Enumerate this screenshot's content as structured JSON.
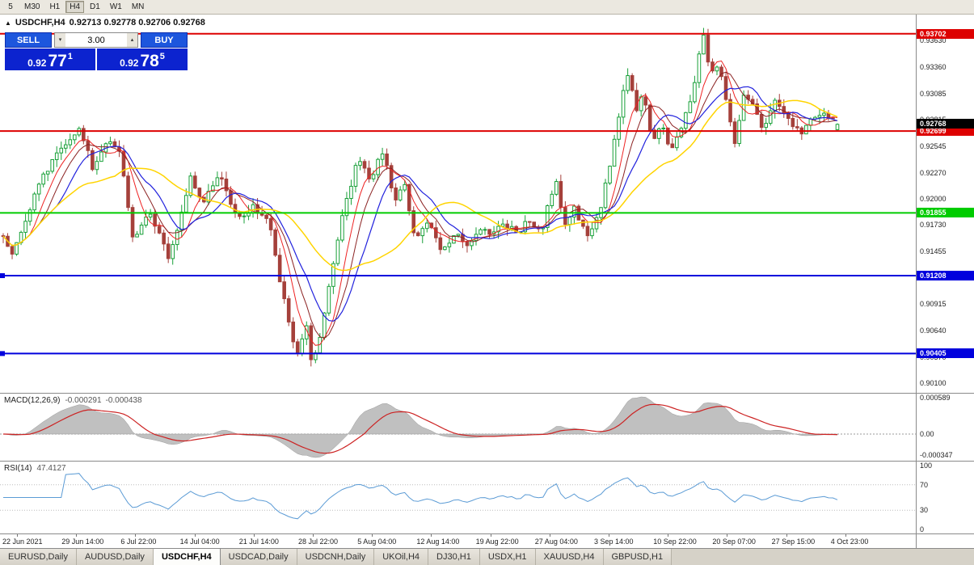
{
  "toolbar": {
    "timeframes": [
      "5",
      "M30",
      "H1",
      "H4",
      "D1",
      "W1",
      "MN"
    ],
    "active": "H4"
  },
  "chart": {
    "title_symbol": "USDCHF,H4",
    "title_ohlc": "0.92713 0.92778 0.92706 0.92768"
  },
  "icons": {
    "price_up_arrow": "▲",
    "spinner_up": "▴",
    "spinner_down": "▾"
  },
  "trade_widget": {
    "sell_label": "SELL",
    "buy_label": "BUY",
    "lot": "3.00",
    "sell_price": {
      "big": "0.92",
      "pips": "77",
      "pip_sup": "1"
    },
    "buy_price": {
      "big": "0.92",
      "pips": "78",
      "pip_sup": "5"
    }
  },
  "colors": {
    "up_candle": "#18a038",
    "down_candle": "#a5403b",
    "macd_fill": "#c0c0c0",
    "macd_signal": "#cc2222",
    "rsi_line": "#5b9bd5",
    "line_red": "#dd0000",
    "line_green": "#00cc00",
    "line_blue": "#0000dd",
    "widget_button_blue": "#1d56dd",
    "widget_price_blue": "#0c23cf"
  },
  "tabs": {
    "items": [
      "EURUSD,Daily",
      "AUDUSD,Daily",
      "USDCHF,H4",
      "USDCAD,Daily",
      "USDCNH,Daily",
      "UKOil,H4",
      "DJ30,H1",
      "USDX,H1",
      "XAUUSD,H4",
      "GBPUSD,H1"
    ],
    "active": "USDCHF,H4"
  },
  "chart_data": {
    "type": "candlestick",
    "symbol": "USDCHF",
    "timeframe": "H4",
    "visible_price_range": [
      0.9,
      0.939
    ],
    "candle_count": 188,
    "last_candle": [
      0.92713,
      0.92778,
      0.92706,
      0.92768
    ],
    "price_axis_labels": [
      "0.93630",
      "0.93360",
      "0.93085",
      "0.92815",
      "0.92545",
      "0.92270",
      "0.92000",
      "0.91730",
      "0.91455",
      "0.91185",
      "0.90915",
      "0.90640",
      "0.90370",
      "0.90100"
    ],
    "current_price": {
      "value": 0.92768,
      "label": "0.92768",
      "tag_bg": "#000000"
    },
    "horizontal_lines": [
      {
        "price": 0.93702,
        "label": "0.93702",
        "color": "#dd0000",
        "left_handle": false
      },
      {
        "price": 0.92699,
        "label": "0.92699",
        "color": "#dd0000",
        "left_handle": false
      },
      {
        "price": 0.91855,
        "label": "0.91855",
        "color": "#00cc00",
        "left_handle": false
      },
      {
        "price": 0.91208,
        "label": "0.91208",
        "color": "#0000dd",
        "left_handle": true
      },
      {
        "price": 0.90405,
        "label": "0.90405",
        "color": "#0000dd",
        "left_handle": true
      }
    ],
    "moving_averages": [
      {
        "name": "ma-fast-red",
        "period": 6,
        "color": "#ee2222",
        "width": 1
      },
      {
        "name": "ma-darkred",
        "period": 9,
        "color": "#8b2222",
        "width": 1
      },
      {
        "name": "ma-mid-blue",
        "period": 13,
        "color": "#2222dd",
        "width": 1.2
      },
      {
        "name": "ma-slow-yellow",
        "period": 26,
        "color": "#ffd400",
        "width": 1.5
      }
    ],
    "indicators": [
      {
        "type": "MACD",
        "display_name": "MACD(12,26,9)",
        "value_main": "-0.000291",
        "value_signal": "-0.000438",
        "scale_labels": [
          "0.000589",
          "0.00",
          "-0.000347"
        ]
      },
      {
        "type": "RSI",
        "display_name": "RSI(14)",
        "value": "47.4127",
        "scale_labels": [
          "100",
          "70",
          "30",
          "0"
        ],
        "levels": [
          70,
          30
        ]
      }
    ],
    "time_labels": [
      "22 Jun 2021",
      "29 Jun 14:00",
      "6 Jul 22:00",
      "14 Jul 04:00",
      "21 Jul 14:00",
      "28 Jul 22:00",
      "5 Aug 04:00",
      "12 Aug 14:00",
      "19 Aug 22:00",
      "27 Aug 04:00",
      "3 Sep 14:00",
      "10 Sep 22:00",
      "20 Sep 07:00",
      "27 Sep 15:00",
      "4 Oct 23:00"
    ],
    "price_path": [
      [
        0.0,
        0.9162
      ],
      [
        0.01,
        0.914
      ],
      [
        0.04,
        0.921
      ],
      [
        0.07,
        0.9255
      ],
      [
        0.093,
        0.9272
      ],
      [
        0.108,
        0.923
      ],
      [
        0.125,
        0.9262
      ],
      [
        0.141,
        0.9243
      ],
      [
        0.156,
        0.9152
      ],
      [
        0.175,
        0.9186
      ],
      [
        0.2,
        0.9138
      ],
      [
        0.224,
        0.9222
      ],
      [
        0.24,
        0.9192
      ],
      [
        0.258,
        0.9228
      ],
      [
        0.28,
        0.9178
      ],
      [
        0.3,
        0.9192
      ],
      [
        0.318,
        0.918
      ],
      [
        0.33,
        0.9125
      ],
      [
        0.345,
        0.9058
      ],
      [
        0.355,
        0.9036
      ],
      [
        0.362,
        0.9075
      ],
      [
        0.37,
        0.9028
      ],
      [
        0.38,
        0.9062
      ],
      [
        0.395,
        0.913
      ],
      [
        0.41,
        0.9196
      ],
      [
        0.425,
        0.924
      ],
      [
        0.44,
        0.9222
      ],
      [
        0.455,
        0.9246
      ],
      [
        0.47,
        0.92
      ],
      [
        0.48,
        0.9216
      ],
      [
        0.495,
        0.9155
      ],
      [
        0.51,
        0.918
      ],
      [
        0.525,
        0.9143
      ],
      [
        0.54,
        0.9166
      ],
      [
        0.555,
        0.915
      ],
      [
        0.57,
        0.9172
      ],
      [
        0.585,
        0.9158
      ],
      [
        0.6,
        0.9178
      ],
      [
        0.615,
        0.9162
      ],
      [
        0.63,
        0.918
      ],
      [
        0.645,
        0.9165
      ],
      [
        0.657,
        0.9205
      ],
      [
        0.663,
        0.9222
      ],
      [
        0.672,
        0.917
      ],
      [
        0.685,
        0.919
      ],
      [
        0.7,
        0.9158
      ],
      [
        0.715,
        0.9185
      ],
      [
        0.728,
        0.924
      ],
      [
        0.74,
        0.9298
      ],
      [
        0.75,
        0.933
      ],
      [
        0.758,
        0.9288
      ],
      [
        0.768,
        0.931
      ],
      [
        0.778,
        0.9262
      ],
      [
        0.79,
        0.928
      ],
      [
        0.8,
        0.9248
      ],
      [
        0.812,
        0.927
      ],
      [
        0.824,
        0.93
      ],
      [
        0.833,
        0.9342
      ],
      [
        0.84,
        0.9368
      ],
      [
        0.848,
        0.9325
      ],
      [
        0.857,
        0.934
      ],
      [
        0.868,
        0.9295
      ],
      [
        0.876,
        0.9255
      ],
      [
        0.888,
        0.9308
      ],
      [
        0.9,
        0.9295
      ],
      [
        0.912,
        0.927
      ],
      [
        0.925,
        0.9302
      ],
      [
        0.94,
        0.9288
      ],
      [
        0.955,
        0.9265
      ],
      [
        0.975,
        0.929
      ],
      [
        1.0,
        0.9277
      ]
    ]
  }
}
